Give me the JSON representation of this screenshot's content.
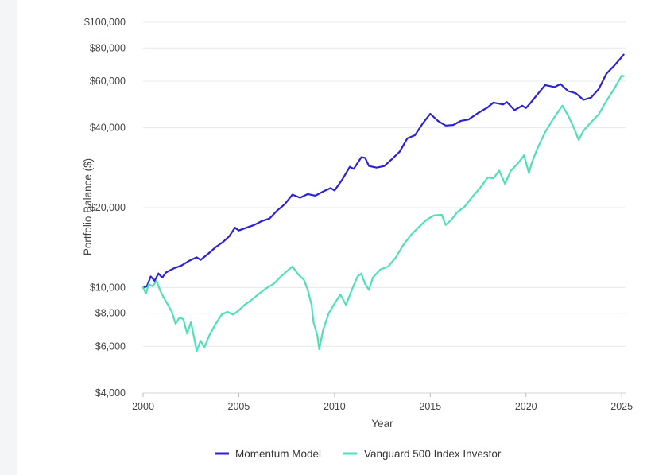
{
  "chart_data": {
    "type": "line",
    "title": "",
    "xlabel": "Year",
    "ylabel": "Portfolio Balance ($)",
    "yscale": "log",
    "xlim": [
      2000,
      2025.2
    ],
    "ylim": [
      4000,
      100000
    ],
    "x_ticks": [
      2000,
      2005,
      2010,
      2015,
      2020,
      2025
    ],
    "y_ticks": [
      {
        "value": 4000,
        "label": "$4,000"
      },
      {
        "value": 6000,
        "label": "$6,000"
      },
      {
        "value": 8000,
        "label": "$8,000"
      },
      {
        "value": 10000,
        "label": "$10,000"
      },
      {
        "value": 20000,
        "label": "$20,000"
      },
      {
        "value": 40000,
        "label": "$40,000"
      },
      {
        "value": 60000,
        "label": "$60,000"
      },
      {
        "value": 80000,
        "label": "$80,000"
      },
      {
        "value": 100000,
        "label": "$100,000"
      }
    ],
    "grid": true,
    "legend_position": "bottom",
    "series": [
      {
        "name": "Momentum Model",
        "color": "#2b21d6",
        "points": [
          [
            2000.0,
            10000
          ],
          [
            2000.2,
            10100
          ],
          [
            2000.4,
            11000
          ],
          [
            2000.6,
            10600
          ],
          [
            2000.8,
            11300
          ],
          [
            2001.0,
            10900
          ],
          [
            2001.2,
            11400
          ],
          [
            2001.6,
            11800
          ],
          [
            2002.0,
            12100
          ],
          [
            2002.4,
            12600
          ],
          [
            2002.8,
            13000
          ],
          [
            2003.0,
            12700
          ],
          [
            2003.4,
            13400
          ],
          [
            2003.8,
            14200
          ],
          [
            2004.2,
            14900
          ],
          [
            2004.5,
            15600
          ],
          [
            2004.8,
            16800
          ],
          [
            2005.0,
            16400
          ],
          [
            2005.4,
            16800
          ],
          [
            2005.8,
            17200
          ],
          [
            2006.2,
            17800
          ],
          [
            2006.6,
            18200
          ],
          [
            2007.0,
            19500
          ],
          [
            2007.4,
            20600
          ],
          [
            2007.8,
            22400
          ],
          [
            2008.2,
            21800
          ],
          [
            2008.6,
            22500
          ],
          [
            2009.0,
            22200
          ],
          [
            2009.4,
            23000
          ],
          [
            2009.8,
            23700
          ],
          [
            2010.0,
            23200
          ],
          [
            2010.4,
            25500
          ],
          [
            2010.8,
            28500
          ],
          [
            2011.0,
            28000
          ],
          [
            2011.4,
            31000
          ],
          [
            2011.6,
            30800
          ],
          [
            2011.8,
            28700
          ],
          [
            2012.2,
            28300
          ],
          [
            2012.6,
            28700
          ],
          [
            2013.0,
            30500
          ],
          [
            2013.4,
            32500
          ],
          [
            2013.8,
            36500
          ],
          [
            2014.2,
            37500
          ],
          [
            2014.6,
            41500
          ],
          [
            2015.0,
            45200
          ],
          [
            2015.4,
            42500
          ],
          [
            2015.8,
            40800
          ],
          [
            2016.2,
            41000
          ],
          [
            2016.6,
            42500
          ],
          [
            2017.0,
            43000
          ],
          [
            2017.5,
            45500
          ],
          [
            2018.0,
            47800
          ],
          [
            2018.3,
            49800
          ],
          [
            2018.8,
            49000
          ],
          [
            2019.0,
            50000
          ],
          [
            2019.4,
            46600
          ],
          [
            2019.8,
            48500
          ],
          [
            2020.0,
            47500
          ],
          [
            2020.3,
            50300
          ],
          [
            2020.6,
            53500
          ],
          [
            2021.0,
            58000
          ],
          [
            2021.5,
            57000
          ],
          [
            2021.8,
            58500
          ],
          [
            2022.2,
            55000
          ],
          [
            2022.6,
            54000
          ],
          [
            2023.0,
            51000
          ],
          [
            2023.4,
            52000
          ],
          [
            2023.8,
            56000
          ],
          [
            2024.2,
            64000
          ],
          [
            2024.6,
            68500
          ],
          [
            2025.0,
            74000
          ],
          [
            2025.1,
            75500
          ]
        ]
      },
      {
        "name": "Vanguard 500 Index Investor",
        "color": "#4fe0b8",
        "points": [
          [
            2000.0,
            10000
          ],
          [
            2000.15,
            9500
          ],
          [
            2000.3,
            10300
          ],
          [
            2000.5,
            10100
          ],
          [
            2000.7,
            10600
          ],
          [
            2000.9,
            9700
          ],
          [
            2001.1,
            9100
          ],
          [
            2001.3,
            8600
          ],
          [
            2001.5,
            8100
          ],
          [
            2001.7,
            7300
          ],
          [
            2001.9,
            7700
          ],
          [
            2002.1,
            7600
          ],
          [
            2002.3,
            6700
          ],
          [
            2002.5,
            7400
          ],
          [
            2002.7,
            6300
          ],
          [
            2002.8,
            5750
          ],
          [
            2003.0,
            6300
          ],
          [
            2003.2,
            5950
          ],
          [
            2003.5,
            6700
          ],
          [
            2003.8,
            7300
          ],
          [
            2004.1,
            7900
          ],
          [
            2004.4,
            8100
          ],
          [
            2004.7,
            7900
          ],
          [
            2005.0,
            8200
          ],
          [
            2005.3,
            8600
          ],
          [
            2005.6,
            8900
          ],
          [
            2006.0,
            9400
          ],
          [
            2006.4,
            9900
          ],
          [
            2006.8,
            10300
          ],
          [
            2007.2,
            11000
          ],
          [
            2007.5,
            11500
          ],
          [
            2007.8,
            12000
          ],
          [
            2008.1,
            11200
          ],
          [
            2008.4,
            10700
          ],
          [
            2008.6,
            9800
          ],
          [
            2008.8,
            8600
          ],
          [
            2008.9,
            7400
          ],
          [
            2009.1,
            6600
          ],
          [
            2009.2,
            5850
          ],
          [
            2009.4,
            6900
          ],
          [
            2009.7,
            8000
          ],
          [
            2010.0,
            8700
          ],
          [
            2010.3,
            9400
          ],
          [
            2010.6,
            8600
          ],
          [
            2010.9,
            9800
          ],
          [
            2011.2,
            11000
          ],
          [
            2011.4,
            11300
          ],
          [
            2011.6,
            10300
          ],
          [
            2011.8,
            9800
          ],
          [
            2012.0,
            10900
          ],
          [
            2012.4,
            11700
          ],
          [
            2012.8,
            12000
          ],
          [
            2013.2,
            13000
          ],
          [
            2013.6,
            14500
          ],
          [
            2014.0,
            15800
          ],
          [
            2014.4,
            16900
          ],
          [
            2014.8,
            18000
          ],
          [
            2015.2,
            18700
          ],
          [
            2015.6,
            18800
          ],
          [
            2015.8,
            17200
          ],
          [
            2016.1,
            18000
          ],
          [
            2016.4,
            19200
          ],
          [
            2016.8,
            20200
          ],
          [
            2017.2,
            22000
          ],
          [
            2017.6,
            23700
          ],
          [
            2018.0,
            26000
          ],
          [
            2018.3,
            25800
          ],
          [
            2018.6,
            27600
          ],
          [
            2018.9,
            24600
          ],
          [
            2019.2,
            27500
          ],
          [
            2019.6,
            29500
          ],
          [
            2019.9,
            31500
          ],
          [
            2020.15,
            27000
          ],
          [
            2020.3,
            29500
          ],
          [
            2020.6,
            33500
          ],
          [
            2021.0,
            38500
          ],
          [
            2021.4,
            43000
          ],
          [
            2021.9,
            48500
          ],
          [
            2022.2,
            44500
          ],
          [
            2022.5,
            40000
          ],
          [
            2022.75,
            36000
          ],
          [
            2023.0,
            39000
          ],
          [
            2023.4,
            42000
          ],
          [
            2023.8,
            45000
          ],
          [
            2024.2,
            50500
          ],
          [
            2024.6,
            56000
          ],
          [
            2025.0,
            63000
          ],
          [
            2025.1,
            62500
          ]
        ]
      }
    ]
  }
}
